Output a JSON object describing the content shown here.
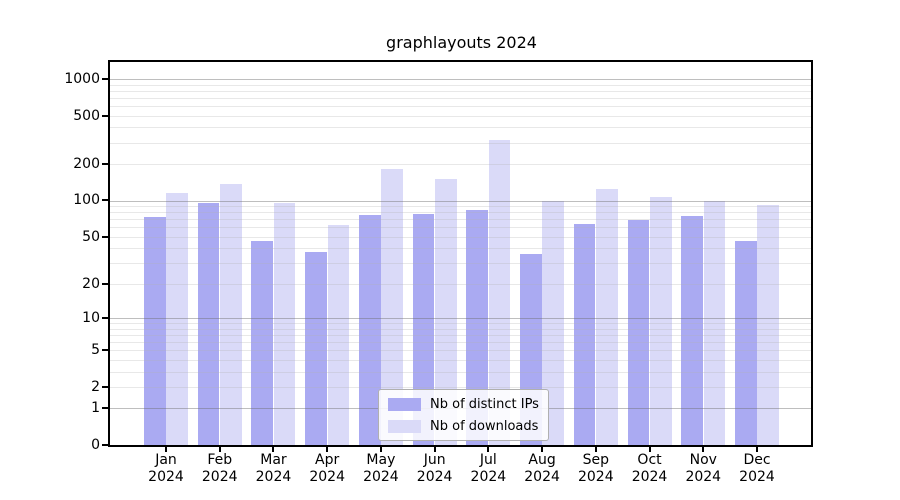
{
  "title": "graphlayouts 2024",
  "legend": {
    "items": [
      {
        "key": "ips",
        "label": "Nb of distinct IPs"
      },
      {
        "key": "downloads",
        "label": "Nb of downloads"
      }
    ]
  },
  "colors": {
    "ips": "#aaaaf2",
    "downloads": "#dadaf8",
    "axis": "#000000",
    "grid_major": "rgba(110,110,110,0.45)",
    "grid_minor": "rgba(180,180,180,0.30)",
    "legend_border": "#b0b0b0"
  },
  "chart_data": {
    "type": "bar",
    "title": "graphlayouts 2024",
    "categories": [
      "Jan",
      "Feb",
      "Mar",
      "Apr",
      "May",
      "Jun",
      "Jul",
      "Aug",
      "Sep",
      "Oct",
      "Nov",
      "Dec"
    ],
    "x_year_label": "2024",
    "series": [
      {
        "key": "ips",
        "name": "Nb of distinct IPs",
        "color": "#aaaaf2",
        "values": [
          73,
          95,
          46,
          37,
          76,
          77,
          83,
          36,
          64,
          69,
          74,
          46
        ]
      },
      {
        "key": "downloads",
        "name": "Nb of downloads",
        "color": "#dadaf8",
        "values": [
          116,
          137,
          96,
          63,
          181,
          150,
          315,
          100,
          124,
          107,
          100,
          92
        ]
      }
    ],
    "yscale": "log10(value+1)",
    "yticks": [
      0,
      1,
      2,
      5,
      10,
      20,
      50,
      100,
      200,
      500,
      1000
    ],
    "ytick_major": [
      1,
      10,
      100,
      1000
    ],
    "ylim": [
      0,
      1377
    ],
    "grid": true,
    "legend_position": "lower center"
  }
}
